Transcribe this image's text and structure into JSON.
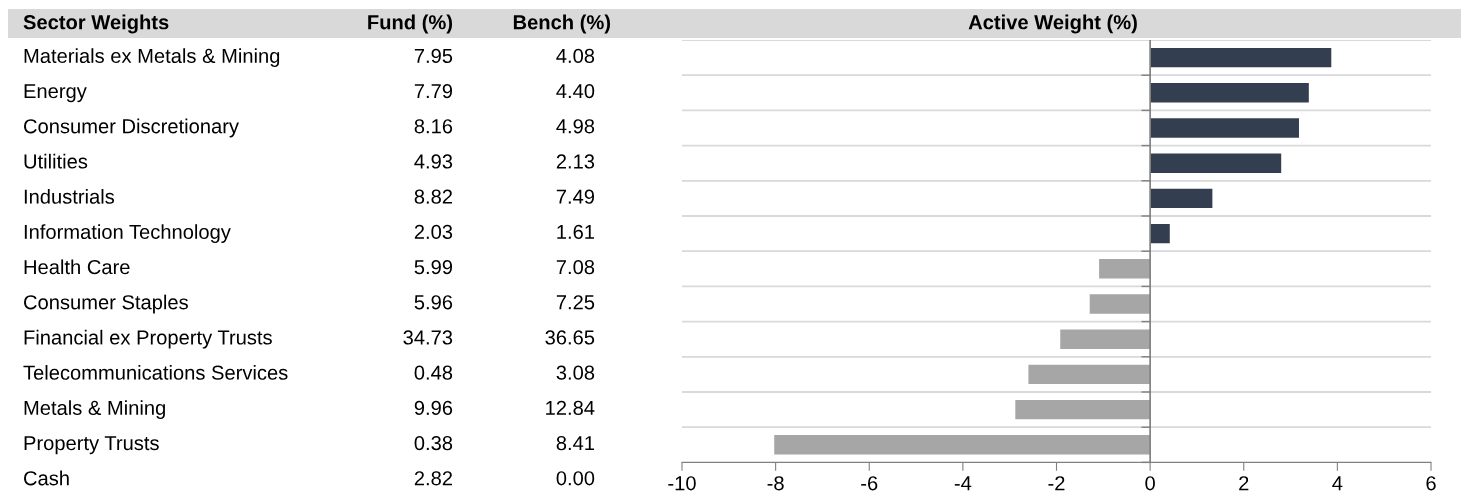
{
  "chart_data": [
    {
      "type": "other",
      "title": "Sector Weights",
      "data_labels": true,
      "categories": [
        "Materials ex Metals & Mining",
        "Energy",
        "Consumer Discretionary",
        "Utilities",
        "Industrials",
        "Information Technology",
        "Health Care",
        "Consumer Staples",
        "Financial ex Property Trusts",
        "Telecommunications Services",
        "Metals & Mining",
        "Property Trusts",
        "Cash"
      ],
      "series": [
        {
          "name": "Fund (%)",
          "values": [
            7.95,
            7.79,
            8.16,
            4.93,
            8.82,
            2.03,
            5.99,
            5.96,
            34.73,
            0.48,
            9.96,
            0.38,
            2.82
          ]
        },
        {
          "name": "Bench (%)",
          "values": [
            4.08,
            4.4,
            4.98,
            2.13,
            7.49,
            1.61,
            7.08,
            7.25,
            36.65,
            3.08,
            12.84,
            8.41,
            0.0
          ],
          "value_labels": [
            "4.08",
            "4.40",
            "4.98",
            "2.13",
            "7.49",
            "1.61",
            "7.08",
            "7.25",
            "36.65",
            "3.08",
            "12.84",
            "8.41",
            "0.00"
          ]
        }
      ]
    },
    {
      "type": "bar",
      "orientation": "horizontal",
      "title": "Active Weight (%)",
      "categories": [
        null,
        null,
        null,
        null,
        null,
        null,
        null,
        null,
        null,
        null,
        null,
        null
      ],
      "values": [
        3.87,
        3.39,
        3.18,
        2.8,
        1.33,
        0.42,
        -1.09,
        -1.29,
        -1.92,
        -2.6,
        -2.88,
        -8.03
      ],
      "colors": [
        "#333f50",
        "#333f50",
        "#333f50",
        "#333f50",
        "#333f50",
        "#333f50",
        "#a6a6a6",
        "#a6a6a6",
        "#a6a6a6",
        "#a6a6a6",
        "#a6a6a6",
        "#a6a6a6"
      ],
      "xlim": [
        -10,
        6
      ],
      "xticks": [
        -10,
        -8,
        -6,
        -4,
        -2,
        0,
        2,
        4,
        6
      ],
      "grid": "y"
    }
  ]
}
